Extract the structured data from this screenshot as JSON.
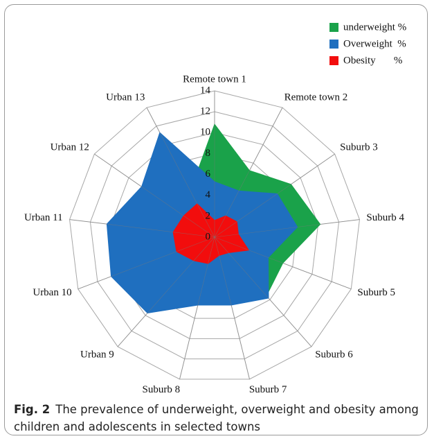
{
  "chart_data": {
    "type": "radar",
    "categories": [
      "Remote town 1",
      "Remote town 2",
      "Suburb  3",
      "Suburb  4",
      "Suburb  5",
      "Suburb  6",
      "Suburb  7",
      "Suburb  8",
      "Urban  9",
      "Urban  10",
      "Urban  11",
      "Urban  12",
      "Urban  13"
    ],
    "series": [
      {
        "name": "underweight %",
        "color": "#1aa24a",
        "values": [
          10.8,
          7.2,
          8.9,
          10.2,
          7,
          7.5,
          3,
          3,
          3,
          3,
          3,
          3,
          5
        ]
      },
      {
        "name": "Overweight  %",
        "color": "#1f6fbf",
        "values": [
          5.3,
          5,
          7.3,
          8,
          5.5,
          7.8,
          6.7,
          6.7,
          9.7,
          10.6,
          10.4,
          8.5,
          11.3
        ]
      },
      {
        "name": "Obesity       %",
        "color": "#f20d0d",
        "values": [
          1.6,
          2.3,
          2.6,
          2.3,
          3.5,
          2,
          1.8,
          2.6,
          3,
          3.9,
          4,
          3.6,
          3.6
        ]
      }
    ],
    "rlim": [
      0,
      14
    ],
    "rticks": [
      0,
      2,
      4,
      6,
      8,
      10,
      12,
      14
    ],
    "grid": true,
    "legend": "upper right",
    "caption_label": "Fig. 2",
    "caption": "The prevalence of underweight, overweight and obesity among children and adolescents in selected towns"
  }
}
